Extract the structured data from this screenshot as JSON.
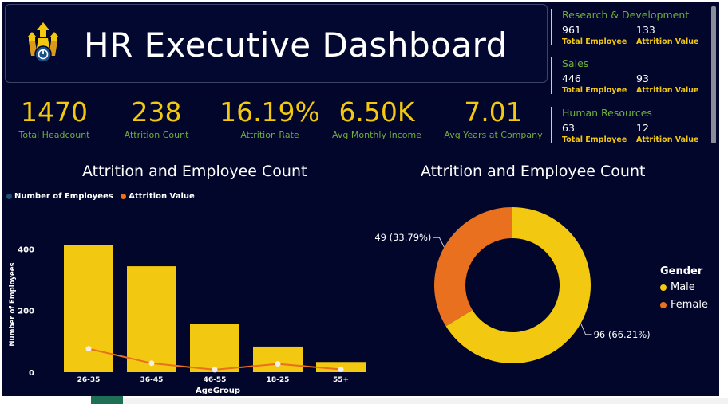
{
  "header": {
    "title": "HR Executive Dashboard",
    "logo_icon": "rocket-icon"
  },
  "kpis": [
    {
      "value": "1470",
      "label": "Total Headcount"
    },
    {
      "value": "238",
      "label": "Attrition Count"
    },
    {
      "value": "16.19%",
      "label": "Attrition Rate"
    },
    {
      "value": "6.50K",
      "label": "Avg Monthly Income"
    },
    {
      "value": "7.01",
      "label": "Avg Years at Company"
    }
  ],
  "departments": [
    {
      "name": "Research & Development",
      "total": "961",
      "total_label": "Total Employee",
      "attrition": "133",
      "attrition_label": "Attrition Value"
    },
    {
      "name": "Sales",
      "total": "446",
      "total_label": "Total Employee",
      "attrition": "93",
      "attrition_label": "Attrition Value"
    },
    {
      "name": "Human Resources",
      "total": "63",
      "total_label": "Total Employee",
      "attrition": "12",
      "attrition_label": "Attrition Value"
    }
  ],
  "colors": {
    "background": "#02062a",
    "accent_yellow": "#f2c811",
    "accent_green": "#6fae3b",
    "female_orange": "#e8701e",
    "employees_dot": "#1f4e79"
  },
  "chart_data": [
    {
      "type": "bar",
      "title": "Attrition and Employee Count",
      "xlabel": "AgeGroup",
      "ylabel": "Number of Employees",
      "categories": [
        "26-35",
        "36-45",
        "46-55",
        "18-25",
        "55+"
      ],
      "series": [
        {
          "name": "Number of Employees",
          "type": "bar",
          "values": [
            414,
            344,
            156,
            83,
            33
          ]
        },
        {
          "name": "Attrition Value",
          "type": "line",
          "values": [
            76,
            29,
            8,
            27,
            9
          ]
        }
      ],
      "yticks": [
        "0",
        "200",
        "400"
      ],
      "ylim": [
        0,
        440
      ],
      "legend": "top-left"
    },
    {
      "type": "pie",
      "title": "Attrition and Employee Count",
      "legend_title": "Gender",
      "slices": [
        {
          "name": "Male",
          "value": 96,
          "label": "96 (66.21%)",
          "color": "#f2c811"
        },
        {
          "name": "Female",
          "value": 49,
          "label": "49 (33.79%)",
          "color": "#e8701e"
        }
      ],
      "legend": "right"
    }
  ]
}
